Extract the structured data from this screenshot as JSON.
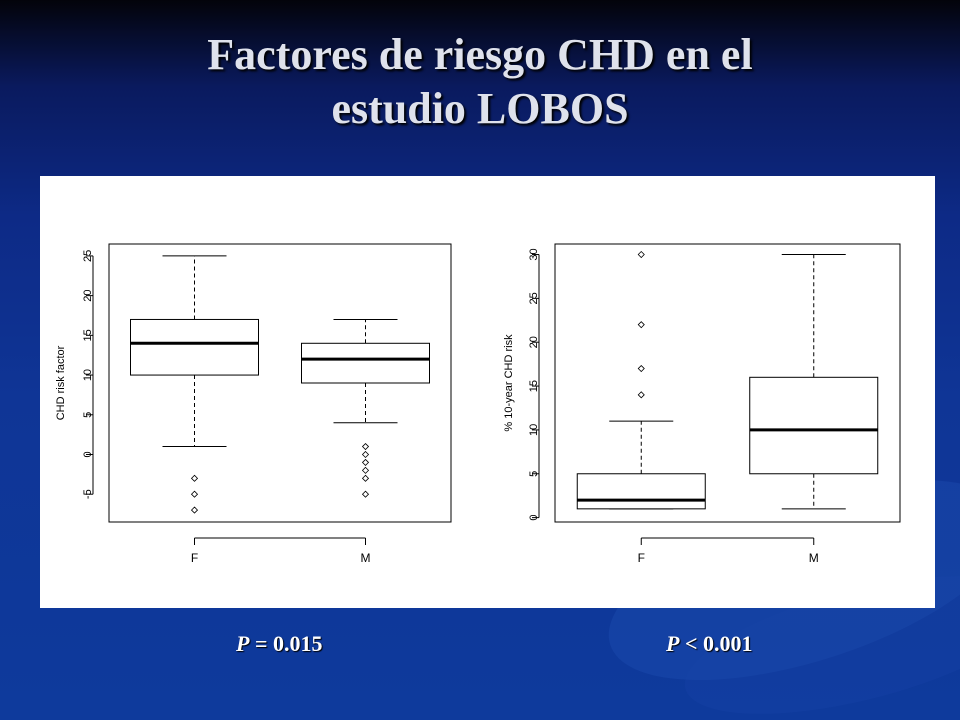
{
  "slide": {
    "title_line1": "Factores de riesgo CHD en el",
    "title_line2": "estudio LOBOS",
    "pvalues": [
      {
        "letter": "P",
        "text": " = 0.015"
      },
      {
        "letter": "P",
        "text": " < 0.001"
      }
    ]
  },
  "chart_data": [
    {
      "type": "box",
      "title": "",
      "xlabel": "",
      "ylabel": "CHD risk factor",
      "ylim": [
        -8.5,
        26.5
      ],
      "yticks": [
        -5,
        0,
        5,
        10,
        15,
        20,
        25
      ],
      "categories": [
        "F",
        "M"
      ],
      "boxes": [
        {
          "name": "F",
          "whisker_low": 1,
          "q1": 10,
          "median": 14,
          "q3": 17,
          "whisker_high": 25,
          "outliers": [
            -3,
            -5,
            -7
          ]
        },
        {
          "name": "M",
          "whisker_low": 4,
          "q1": 9,
          "median": 12,
          "q3": 14,
          "whisker_high": 17,
          "outliers": [
            1,
            0,
            -1,
            -2,
            -3,
            -5
          ]
        }
      ],
      "grid": false
    },
    {
      "type": "box",
      "title": "",
      "xlabel": "",
      "ylabel": "% 10-year CHD risk",
      "ylim": [
        -0.5,
        31.2
      ],
      "yticks": [
        0,
        5,
        10,
        15,
        20,
        25,
        30
      ],
      "categories": [
        "F",
        "M"
      ],
      "boxes": [
        {
          "name": "F",
          "whisker_low": 1,
          "q1": 1,
          "median": 2,
          "q3": 5,
          "whisker_high": 11,
          "outliers": [
            14,
            17,
            22,
            30
          ]
        },
        {
          "name": "M",
          "whisker_low": 1,
          "q1": 5,
          "median": 10,
          "q3": 16,
          "whisker_high": 30,
          "outliers": []
        }
      ],
      "grid": false
    }
  ]
}
